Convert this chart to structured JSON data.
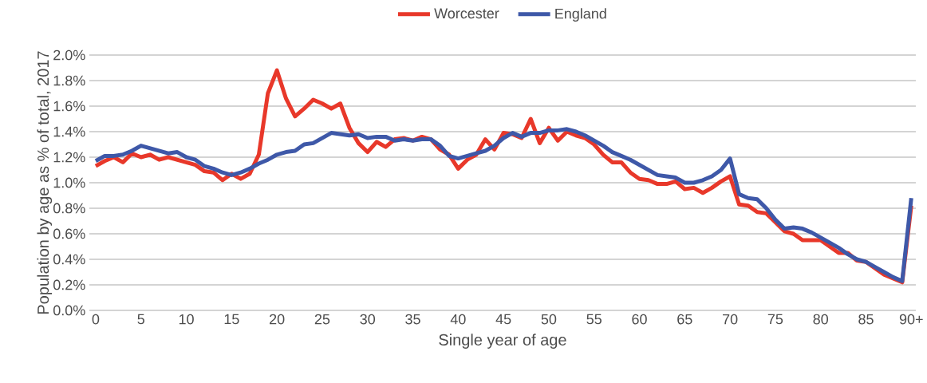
{
  "chart_data": {
    "type": "line",
    "xlabel": "Single year of age",
    "ylabel": "Population by age as % of total, 2017",
    "categories": [
      "0",
      null,
      null,
      null,
      null,
      "5",
      null,
      null,
      null,
      null,
      "10",
      null,
      null,
      null,
      null,
      "15",
      null,
      null,
      null,
      null,
      "20",
      null,
      null,
      null,
      null,
      "25",
      null,
      null,
      null,
      null,
      "30",
      null,
      null,
      null,
      null,
      "35",
      null,
      null,
      null,
      null,
      "40",
      null,
      null,
      null,
      null,
      "45",
      null,
      null,
      null,
      null,
      "50",
      null,
      null,
      null,
      null,
      "55",
      null,
      null,
      null,
      null,
      "60",
      null,
      null,
      null,
      null,
      "65",
      null,
      null,
      null,
      null,
      "70",
      null,
      null,
      null,
      null,
      "75",
      null,
      null,
      null,
      null,
      "80",
      null,
      null,
      null,
      null,
      "85",
      null,
      null,
      null,
      null,
      "90+"
    ],
    "series": [
      {
        "name": "Worcester",
        "color": "#e8382a",
        "values": [
          1.13,
          1.17,
          1.2,
          1.16,
          1.23,
          1.2,
          1.22,
          1.18,
          1.2,
          1.18,
          1.16,
          1.14,
          1.09,
          1.08,
          1.02,
          1.07,
          1.03,
          1.07,
          1.22,
          1.7,
          1.88,
          1.66,
          1.52,
          1.58,
          1.65,
          1.62,
          1.58,
          1.62,
          1.43,
          1.31,
          1.24,
          1.32,
          1.28,
          1.34,
          1.35,
          1.33,
          1.36,
          1.34,
          1.26,
          1.22,
          1.11,
          1.18,
          1.22,
          1.34,
          1.26,
          1.39,
          1.38,
          1.35,
          1.5,
          1.31,
          1.43,
          1.33,
          1.4,
          1.37,
          1.35,
          1.3,
          1.22,
          1.16,
          1.16,
          1.08,
          1.03,
          1.02,
          0.99,
          0.99,
          1.01,
          0.95,
          0.96,
          0.92,
          0.96,
          1.01,
          1.05,
          0.83,
          0.82,
          0.77,
          0.76,
          0.69,
          0.62,
          0.6,
          0.55,
          0.55,
          0.55,
          0.5,
          0.45,
          0.45,
          0.39,
          0.38,
          0.33,
          0.28,
          0.25,
          0.22,
          0.82
        ]
      },
      {
        "name": "England",
        "color": "#3e58a8",
        "values": [
          1.17,
          1.21,
          1.21,
          1.22,
          1.25,
          1.29,
          1.27,
          1.25,
          1.23,
          1.24,
          1.2,
          1.18,
          1.13,
          1.11,
          1.08,
          1.06,
          1.08,
          1.11,
          1.15,
          1.18,
          1.22,
          1.24,
          1.25,
          1.3,
          1.31,
          1.35,
          1.39,
          1.38,
          1.37,
          1.38,
          1.35,
          1.36,
          1.36,
          1.33,
          1.34,
          1.33,
          1.34,
          1.34,
          1.29,
          1.21,
          1.19,
          1.21,
          1.23,
          1.25,
          1.29,
          1.35,
          1.39,
          1.36,
          1.39,
          1.39,
          1.41,
          1.41,
          1.42,
          1.4,
          1.37,
          1.33,
          1.29,
          1.24,
          1.21,
          1.18,
          1.14,
          1.1,
          1.06,
          1.05,
          1.04,
          1.0,
          1.0,
          1.02,
          1.05,
          1.1,
          1.19,
          0.91,
          0.88,
          0.87,
          0.8,
          0.71,
          0.64,
          0.65,
          0.64,
          0.61,
          0.57,
          0.53,
          0.49,
          0.44,
          0.4,
          0.38,
          0.34,
          0.3,
          0.26,
          0.23,
          0.88
        ]
      }
    ],
    "ylim": [
      0,
      2.0
    ],
    "yticks": [
      {
        "value": 0,
        "label": "0.0%"
      },
      {
        "value": 0.2,
        "label": "0.2%"
      },
      {
        "value": 0.4,
        "label": "0.4%"
      },
      {
        "value": 0.6,
        "label": "0.6%"
      },
      {
        "value": 0.8,
        "label": "0.8%"
      },
      {
        "value": 1.0,
        "label": "1.0%"
      },
      {
        "value": 1.2,
        "label": "1.2%"
      },
      {
        "value": 1.4,
        "label": "1.4%"
      },
      {
        "value": 1.6,
        "label": "1.6%"
      },
      {
        "value": 1.8,
        "label": "1.8%"
      },
      {
        "value": 2.0,
        "label": "2.0%"
      }
    ],
    "grid": "y",
    "legend": "top",
    "marker": "none",
    "line_style": "solid"
  }
}
